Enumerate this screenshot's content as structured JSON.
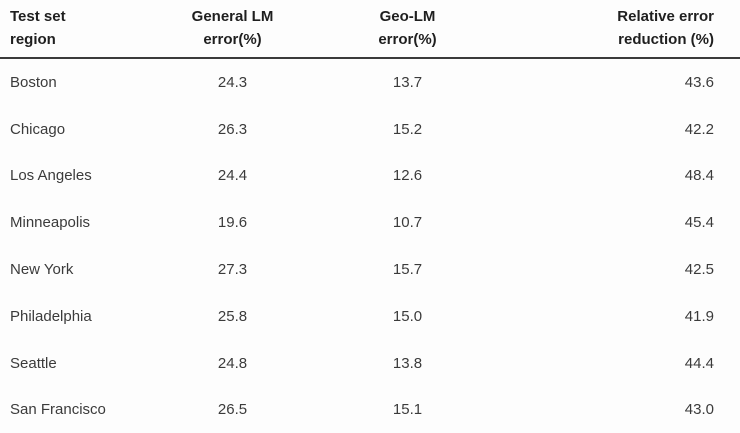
{
  "colors": {
    "background": "#fdfdfd",
    "header_text": "#1f1f1f",
    "body_text": "#3b3b3b",
    "header_rule": "#3a3a3a"
  },
  "table": {
    "columns": [
      {
        "label_lines": [
          "Test set",
          "region"
        ],
        "align": "left"
      },
      {
        "label_lines": [
          "General LM",
          "error(%)"
        ],
        "align": "center"
      },
      {
        "label_lines": [
          "Geo-LM",
          "error(%)"
        ],
        "align": "center"
      },
      {
        "label_lines": [
          "Relative error",
          "reduction (%)"
        ],
        "align": "right"
      }
    ],
    "rows": [
      {
        "region": "Boston",
        "general_lm_error": "24.3",
        "geo_lm_error": "13.7",
        "relative_error_reduction": "43.6"
      },
      {
        "region": "Chicago",
        "general_lm_error": "26.3",
        "geo_lm_error": "15.2",
        "relative_error_reduction": "42.2"
      },
      {
        "region": "Los Angeles",
        "general_lm_error": "24.4",
        "geo_lm_error": "12.6",
        "relative_error_reduction": "48.4"
      },
      {
        "region": "Minneapolis",
        "general_lm_error": "19.6",
        "geo_lm_error": "10.7",
        "relative_error_reduction": "45.4"
      },
      {
        "region": "New York",
        "general_lm_error": "27.3",
        "geo_lm_error": "15.7",
        "relative_error_reduction": "42.5"
      },
      {
        "region": "Philadelphia",
        "general_lm_error": "25.8",
        "geo_lm_error": "15.0",
        "relative_error_reduction": "41.9"
      },
      {
        "region": "Seattle",
        "general_lm_error": "24.8",
        "geo_lm_error": "13.8",
        "relative_error_reduction": "44.4"
      },
      {
        "region": "San Francisco",
        "general_lm_error": "26.5",
        "geo_lm_error": "15.1",
        "relative_error_reduction": "43.0"
      }
    ]
  },
  "chart_data": {
    "type": "table",
    "title": "",
    "columns": [
      "Test set region",
      "General LM error(%)",
      "Geo-LM error(%)",
      "Relative error reduction (%)"
    ],
    "rows": [
      [
        "Boston",
        24.3,
        13.7,
        43.6
      ],
      [
        "Chicago",
        26.3,
        15.2,
        42.2
      ],
      [
        "Los Angeles",
        24.4,
        12.6,
        48.4
      ],
      [
        "Minneapolis",
        19.6,
        10.7,
        45.4
      ],
      [
        "New York",
        27.3,
        15.7,
        42.5
      ],
      [
        "Philadelphia",
        25.8,
        15.0,
        41.9
      ],
      [
        "Seattle",
        24.8,
        13.8,
        44.4
      ],
      [
        "San Francisco",
        26.5,
        15.1,
        43.0
      ]
    ]
  }
}
